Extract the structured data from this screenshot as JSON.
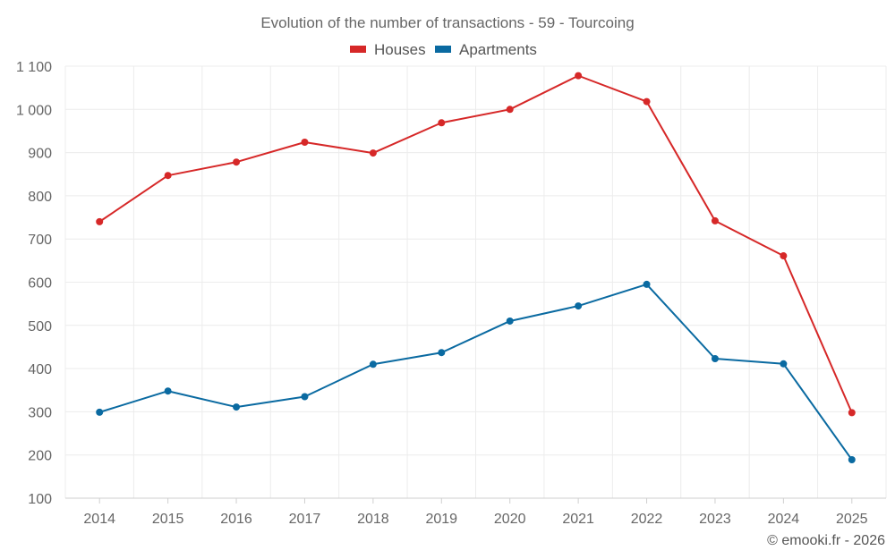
{
  "chart_data": {
    "type": "line",
    "title": "Evolution of the number of transactions - 59 - Tourcoing",
    "categories": [
      "2014",
      "2015",
      "2016",
      "2017",
      "2018",
      "2019",
      "2020",
      "2021",
      "2022",
      "2023",
      "2024",
      "2025"
    ],
    "yticks": [
      "100",
      "200",
      "300",
      "400",
      "500",
      "600",
      "700",
      "800",
      "900",
      "1 000",
      "1 100"
    ],
    "ylim": [
      100,
      1100
    ],
    "legend_position": "top-center",
    "grid": true,
    "series": [
      {
        "name": "Houses",
        "color": "#d62828",
        "values": [
          740,
          847,
          878,
          924,
          899,
          969,
          1000,
          1078,
          1018,
          742,
          661,
          298
        ]
      },
      {
        "name": "Apartments",
        "color": "#0a6aa1",
        "values": [
          299,
          348,
          311,
          335,
          410,
          437,
          510,
          545,
          595,
          423,
          411,
          189
        ]
      }
    ]
  },
  "credit": "© emooki.fr - 2026"
}
